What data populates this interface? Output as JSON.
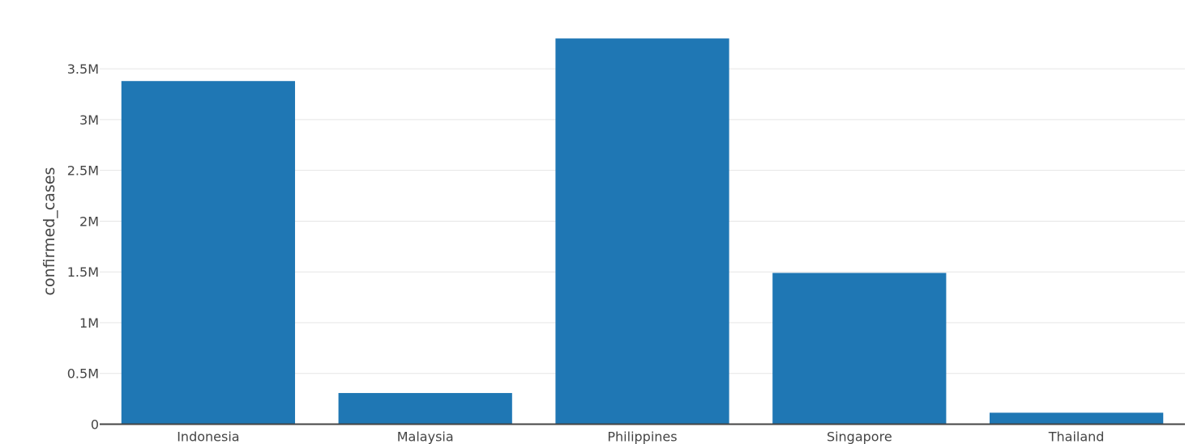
{
  "chart_data": {
    "type": "bar",
    "title": "",
    "xlabel": "",
    "ylabel": "confirmed_cases",
    "categories": [
      "Indonesia",
      "Malaysia",
      "Philippines",
      "Singapore",
      "Thailand"
    ],
    "values": [
      3380000,
      307000,
      3800000,
      1490000,
      113000
    ],
    "ylim": [
      0,
      3800000
    ],
    "yticks": [
      0,
      500000,
      1000000,
      1500000,
      2000000,
      2500000,
      3000000,
      3500000
    ],
    "ytick_labels": [
      "0",
      "0.5M",
      "1M",
      "1.5M",
      "2M",
      "2.5M",
      "3M",
      "3.5M"
    ],
    "grid": true,
    "legend": false,
    "bar_color": "#1f77b4",
    "grid_color": "#e5e5e5",
    "axis_color": "#444444"
  }
}
